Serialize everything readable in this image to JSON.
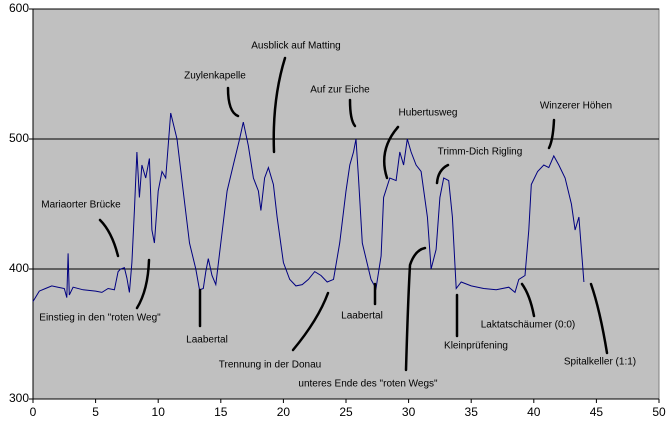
{
  "chart_data": {
    "type": "line",
    "x": [
      0,
      0.5,
      1,
      1.5,
      2,
      2.5,
      2.7,
      2.8,
      2.9,
      3.2,
      4,
      5,
      5.5,
      6,
      6.5,
      6.8,
      7,
      7.3,
      7.5,
      7.7,
      7.9,
      8.1,
      8.3,
      8.5,
      8.7,
      9,
      9.3,
      9.5,
      9.7,
      10,
      10.3,
      10.6,
      11,
      11.5,
      12,
      12.5,
      13,
      13.3,
      13.6,
      13.8,
      14,
      14.3,
      14.6,
      15,
      15.5,
      16,
      16.5,
      16.8,
      17.2,
      17.6,
      18,
      18.2,
      18.5,
      18.8,
      19.2,
      19.5,
      20,
      20.5,
      21,
      21.5,
      22,
      22.5,
      23,
      23.5,
      24,
      24.5,
      25,
      25.3,
      25.6,
      25.8,
      26,
      26.3,
      26.8,
      27,
      27.4,
      27.8,
      28,
      28.5,
      29,
      29.3,
      29.6,
      29.9,
      30.2,
      30.6,
      31,
      31.5,
      31.8,
      32.2,
      32.5,
      32.8,
      33.2,
      33.5,
      33.8,
      34.2,
      35,
      36,
      37,
      38,
      38.5,
      38.8,
      39.3,
      39.6,
      39.8,
      40.3,
      40.8,
      41.2,
      41.6,
      42,
      42.5,
      43,
      43.3,
      43.6,
      44
    ],
    "series": [
      {
        "color": "#000080",
        "values": [
          375,
          383,
          385,
          387,
          386,
          385,
          378,
          412,
          380,
          386,
          384,
          383,
          382,
          385,
          384,
          398,
          400,
          401,
          393,
          382,
          405,
          445,
          490,
          455,
          480,
          470,
          485,
          430,
          420,
          460,
          475,
          470,
          520,
          500,
          460,
          420,
          400,
          384,
          385,
          398,
          408,
          395,
          388,
          420,
          460,
          480,
          500,
          513,
          495,
          470,
          460,
          445,
          470,
          478,
          465,
          440,
          405,
          392,
          387,
          388,
          392,
          398,
          395,
          390,
          392,
          420,
          460,
          480,
          490,
          500,
          470,
          420,
          400,
          392,
          385,
          410,
          455,
          470,
          468,
          490,
          480,
          500,
          490,
          480,
          475,
          440,
          400,
          415,
          455,
          470,
          468,
          440,
          385,
          390,
          387,
          385,
          384,
          386,
          382,
          392,
          395,
          430,
          465,
          475,
          480,
          478,
          487,
          480,
          470,
          450,
          430,
          440,
          390
        ]
      }
    ],
    "xlim": [
      0,
      50
    ],
    "xticks": [
      0,
      5,
      10,
      15,
      20,
      25,
      30,
      35,
      40,
      45,
      50
    ],
    "ylim": [
      300,
      600
    ],
    "yticks": [
      300,
      400,
      500,
      600
    ],
    "grid": true,
    "annotations": [
      "Mariaorter Brücke",
      "Einstieg in den \"roten Weg\"",
      "Laabertal",
      "Zuylenkapelle",
      "Ausblick auf Matting",
      "Trennung in der Donau",
      "Auf zur Eiche",
      "Laabertal",
      "unteres Ende des \"roten Wegs\"",
      "Hubertusweg",
      "Trimm-Dich Rigling",
      "Kleinprüfening",
      "Winzerer Höhen",
      "Laktatschäumer (0:0)",
      "Spitalkeller (1:1)"
    ]
  }
}
